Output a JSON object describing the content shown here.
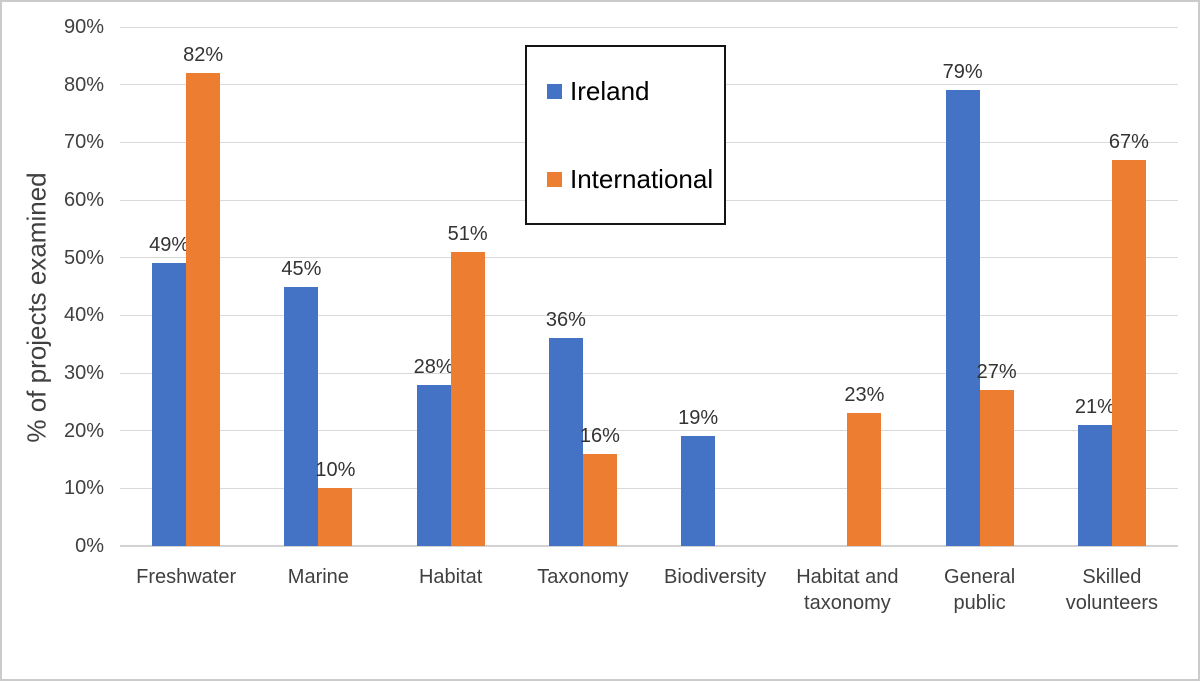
{
  "chart_data": {
    "type": "bar",
    "title": "",
    "xlabel": "",
    "ylabel": "% of projects examined",
    "categories": [
      "Freshwater",
      "Marine",
      "Habitat",
      "Taxonomy",
      "Biodiversity",
      "Habitat and\ntaxonomy",
      "General\npublic",
      "Skilled\nvolunteers"
    ],
    "series": [
      {
        "name": "Ireland",
        "color": "#4472C4",
        "values": [
          49,
          45,
          28,
          36,
          19,
          null,
          79,
          21
        ]
      },
      {
        "name": "International",
        "color": "#ED7D31",
        "values": [
          82,
          10,
          51,
          16,
          null,
          23,
          27,
          67
        ]
      }
    ],
    "data_labels": [
      [
        "49%",
        "45%",
        "28%",
        "36%",
        "19%",
        null,
        "79%",
        "21%"
      ],
      [
        "82%",
        "10%",
        "51%",
        "16%",
        null,
        "23%",
        "27%",
        "67%"
      ]
    ],
    "y_axis": {
      "min": 0,
      "max": 90,
      "tick_step": 10,
      "tick_labels": [
        "0%",
        "10%",
        "20%",
        "30%",
        "40%",
        "50%",
        "60%",
        "70%",
        "80%",
        "90%"
      ]
    },
    "grid": true,
    "legend_position": "inside-top-center",
    "colors": {
      "gridline": "#D9D9D9",
      "axis_line": "#D2D2D2",
      "axis_text": "#404040",
      "value_label_text": "#333333",
      "legend_border": "#141414",
      "legend_text": "#000000"
    }
  }
}
